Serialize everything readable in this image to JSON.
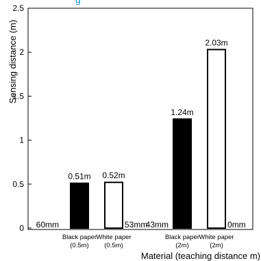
{
  "chart_data": {
    "type": "bar",
    "categories": [
      [
        "Black paper",
        "(0.5m)"
      ],
      [
        "White paper",
        "(0.5m)"
      ],
      [
        "Black paper",
        "(2m)"
      ],
      [
        "White paper",
        "(2m)"
      ]
    ],
    "values": [
      0.51,
      0.52,
      1.24,
      2.03
    ],
    "value_labels": [
      "0.51m",
      "0.52m",
      "1.24m",
      "2.03m"
    ],
    "bar_colors": [
      "#000000",
      "#ffffff",
      "#000000",
      "#ffffff"
    ],
    "minimum_labels": [
      "60mm",
      "53mm",
      "43mm",
      "0mm"
    ],
    "ylabel": "Sensing distance (m)",
    "xlabel": "Material (teaching distance m)",
    "yticks": [
      "0",
      "0.5",
      "1",
      "1.5",
      "2",
      "2.5"
    ],
    "ylim": [
      0,
      2.5
    ],
    "grid": false
  }
}
